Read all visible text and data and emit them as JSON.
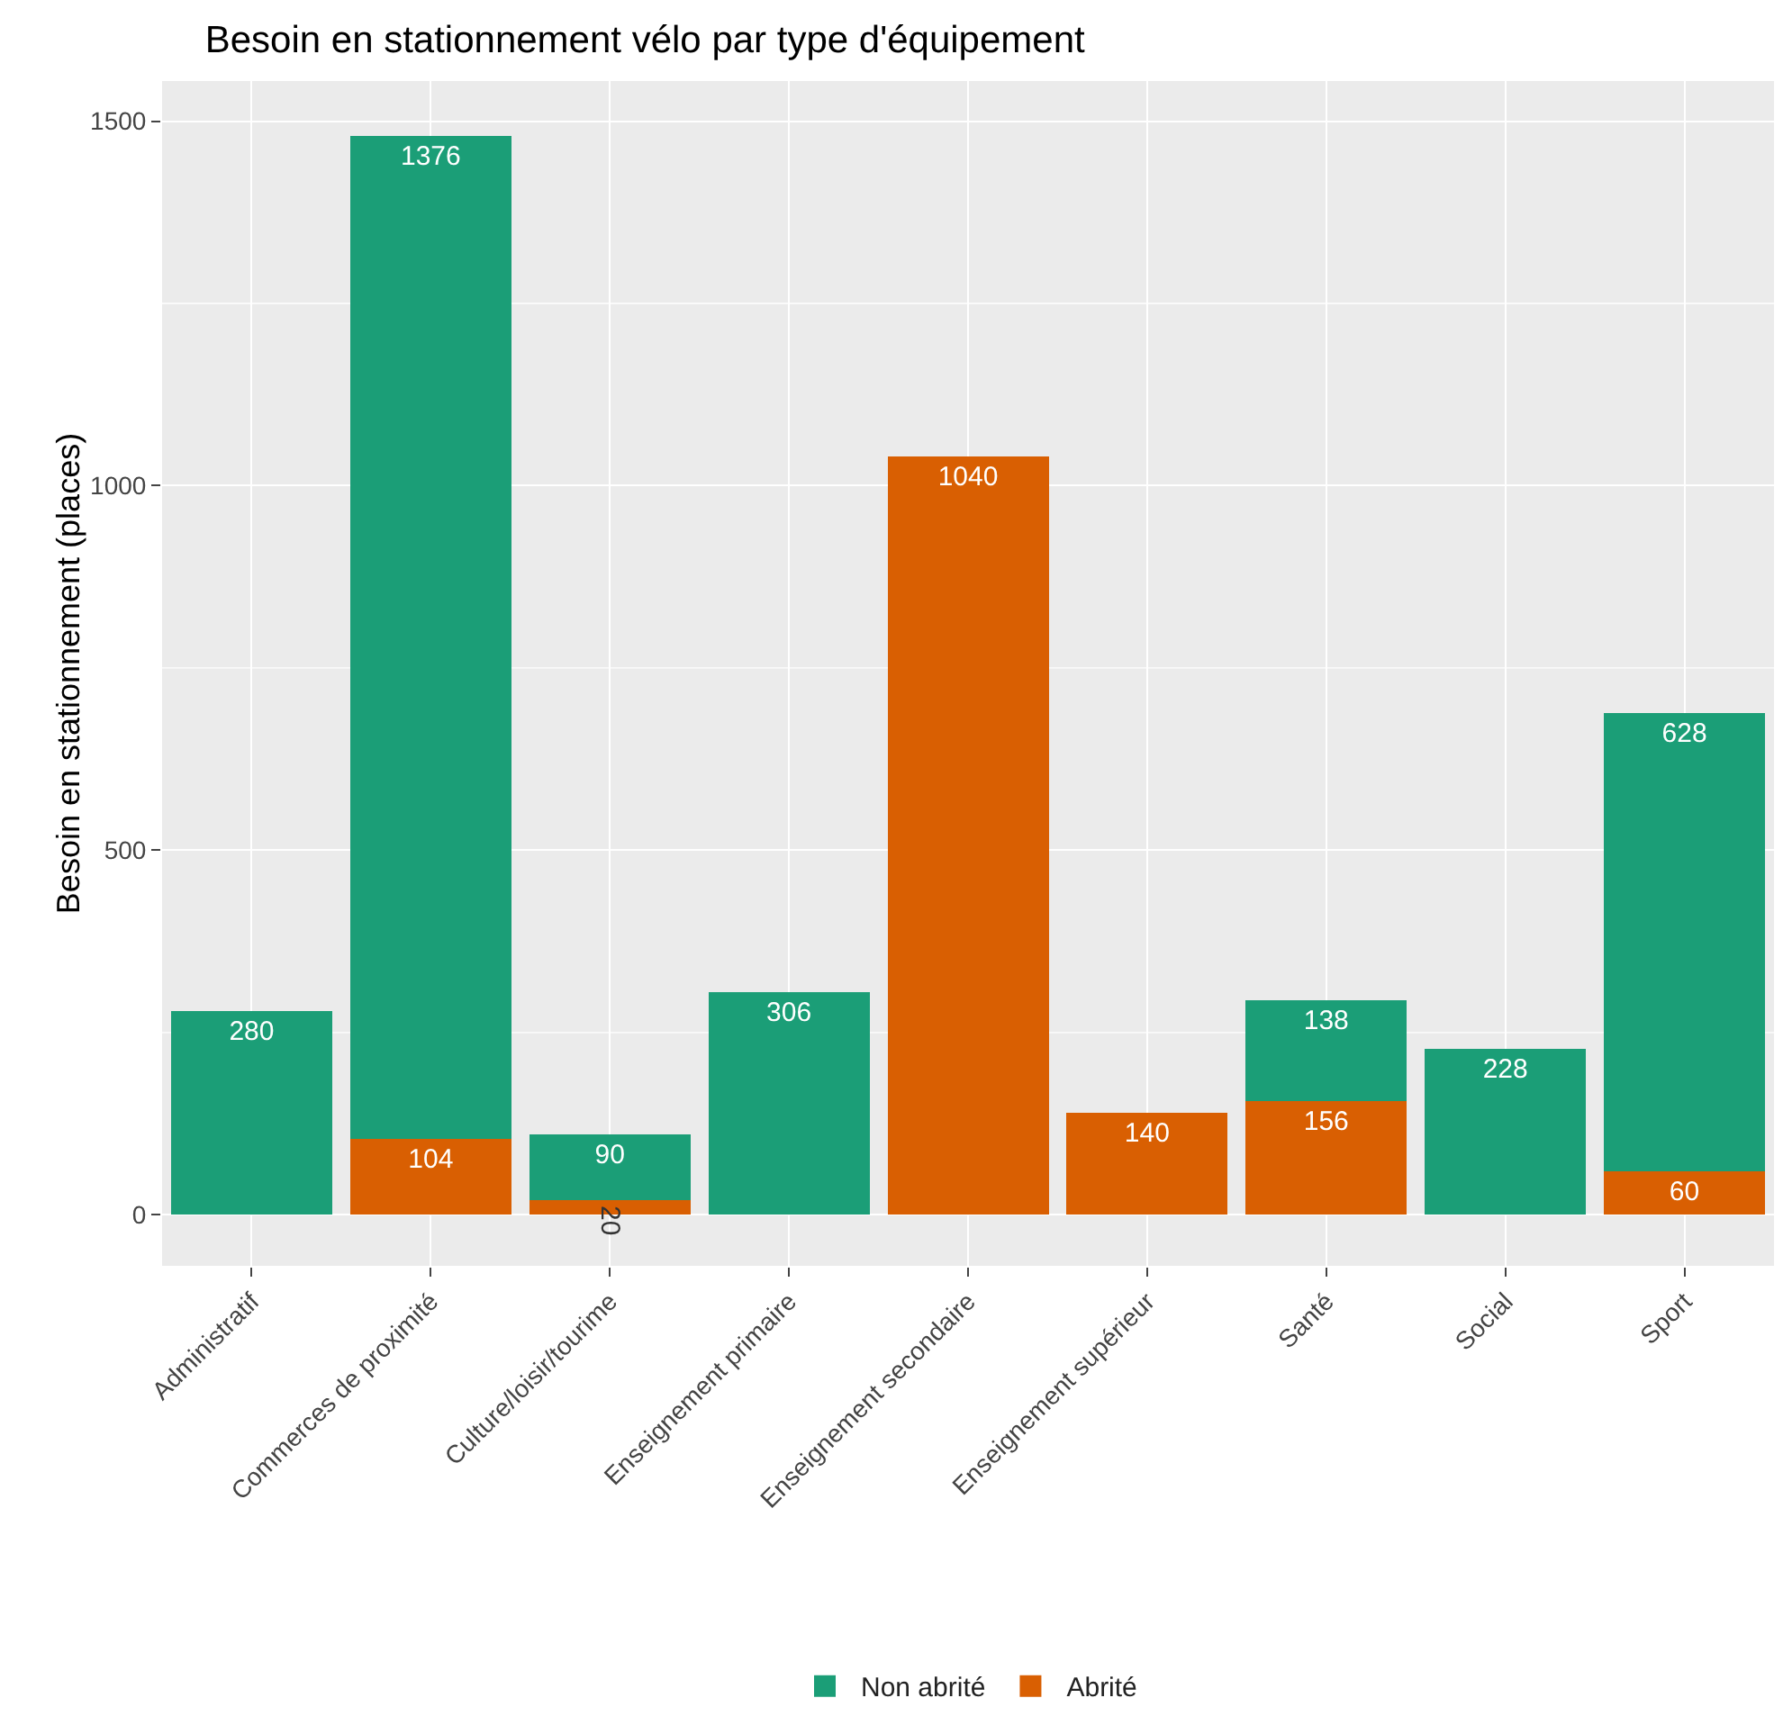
{
  "chart_data": {
    "type": "bar",
    "title": "Besoin en stationnement vélo par type d'équipement",
    "ylabel": "Besoin en stationnement (places)",
    "categories": [
      "Administratif",
      "Commerces de proximité",
      "Culture/loisir/tourime",
      "Enseignement primaire",
      "Enseignement secondaire",
      "Enseignement supérieur",
      "Santé",
      "Social",
      "Sport"
    ],
    "series": [
      {
        "name": "Abrité",
        "color": "#d95f02",
        "values": [
          null,
          104,
          20,
          null,
          1040,
          140,
          156,
          null,
          60
        ]
      },
      {
        "name": "Non abrité",
        "color": "#1b9e77",
        "values": [
          280,
          1376,
          90,
          306,
          null,
          null,
          138,
          228,
          628
        ]
      }
    ],
    "stacked": true,
    "data_labels": true,
    "ylim": [
      -70,
      1555
    ],
    "yticks": [
      0,
      {
        "value": 250,
        "label": null
      },
      500,
      {
        "value": 750,
        "label": null
      },
      1000,
      {
        "value": 1250,
        "label": null
      },
      1500
    ],
    "grid": true,
    "legend": "bottom"
  }
}
